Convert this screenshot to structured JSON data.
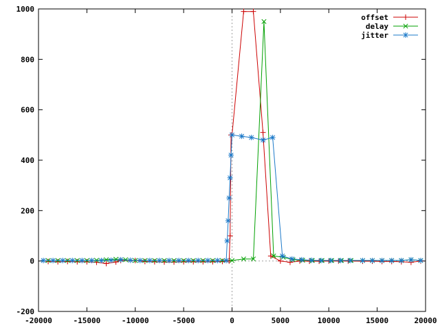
{
  "chart_data": {
    "type": "line",
    "title": "",
    "xlabel": "",
    "ylabel": "",
    "xlim": [
      -20000,
      20000
    ],
    "ylim": [
      -200,
      1000
    ],
    "x_ticks": [
      -20000,
      -15000,
      -10000,
      -5000,
      0,
      5000,
      10000,
      15000,
      20000
    ],
    "y_ticks": [
      -200,
      0,
      200,
      400,
      600,
      800,
      1000
    ],
    "x_tick_labels": [
      "-20000",
      "-15000",
      "-10000",
      "-5000",
      "0",
      "5000",
      "10000",
      "15000",
      "20000"
    ],
    "y_tick_labels": [
      "-200",
      "0",
      "200",
      "400",
      "600",
      "800",
      "1000"
    ],
    "zero_axes": true,
    "grid": false,
    "legend_position": "top-right",
    "series": [
      {
        "name": "offset",
        "color": "#cc0000",
        "marker": "plus",
        "points": [
          [
            -19000,
            -2
          ],
          [
            -18000,
            -3
          ],
          [
            -17000,
            -2
          ],
          [
            -16000,
            -3
          ],
          [
            -15000,
            -3
          ],
          [
            -14000,
            -5
          ],
          [
            -13000,
            -10
          ],
          [
            -12000,
            -4
          ],
          [
            -11500,
            2
          ],
          [
            -10000,
            2
          ],
          [
            -9000,
            -2
          ],
          [
            -8000,
            -3
          ],
          [
            -7000,
            -4
          ],
          [
            -6000,
            -4
          ],
          [
            -5000,
            -3
          ],
          [
            -4000,
            -3
          ],
          [
            -3000,
            -3
          ],
          [
            -2000,
            -3
          ],
          [
            -1000,
            -2
          ],
          [
            -300,
            0
          ],
          [
            -200,
            100
          ],
          [
            -100,
            500
          ],
          [
            0,
            500
          ],
          [
            1200,
            990
          ],
          [
            2200,
            990
          ],
          [
            3200,
            510
          ],
          [
            4000,
            20
          ],
          [
            5000,
            0
          ],
          [
            6000,
            -5
          ],
          [
            7000,
            0
          ],
          [
            8000,
            -1
          ],
          [
            9000,
            -1
          ],
          [
            10000,
            0
          ],
          [
            11000,
            0
          ],
          [
            12000,
            0
          ],
          [
            13500,
            -1
          ],
          [
            14500,
            -1
          ],
          [
            15500,
            -2
          ],
          [
            16500,
            -2
          ],
          [
            17500,
            -3
          ],
          [
            18500,
            -5
          ],
          [
            19500,
            0
          ]
        ]
      },
      {
        "name": "delay",
        "color": "#00a000",
        "marker": "cross",
        "points": [
          [
            -19000,
            2
          ],
          [
            -18000,
            2
          ],
          [
            -17000,
            2
          ],
          [
            -16000,
            2
          ],
          [
            -15000,
            2
          ],
          [
            -14000,
            3
          ],
          [
            -13000,
            5
          ],
          [
            -12000,
            7
          ],
          [
            -11000,
            5
          ],
          [
            -10000,
            2
          ],
          [
            -9000,
            2
          ],
          [
            -8000,
            2
          ],
          [
            -7000,
            2
          ],
          [
            -6000,
            2
          ],
          [
            -5000,
            2
          ],
          [
            -4000,
            2
          ],
          [
            -3000,
            2
          ],
          [
            -2000,
            2
          ],
          [
            -1000,
            2
          ],
          [
            0,
            2
          ],
          [
            1200,
            8
          ],
          [
            2200,
            8
          ],
          [
            3300,
            950
          ],
          [
            4300,
            20
          ],
          [
            5300,
            15
          ],
          [
            6300,
            5
          ],
          [
            7300,
            3
          ],
          [
            8300,
            2
          ],
          [
            9300,
            2
          ],
          [
            10300,
            2
          ],
          [
            11300,
            2
          ],
          [
            12300,
            2
          ],
          [
            13500,
            2
          ],
          [
            14500,
            2
          ],
          [
            15500,
            2
          ],
          [
            16500,
            2
          ],
          [
            17500,
            2
          ],
          [
            18500,
            5
          ],
          [
            19500,
            2
          ]
        ]
      },
      {
        "name": "jitter",
        "color": "#1a78c8",
        "marker": "star",
        "points": [
          [
            -19500,
            2
          ],
          [
            -18500,
            2
          ],
          [
            -17500,
            2
          ],
          [
            -16500,
            2
          ],
          [
            -15500,
            2
          ],
          [
            -14500,
            2
          ],
          [
            -13500,
            2
          ],
          [
            -12500,
            3
          ],
          [
            -11500,
            5
          ],
          [
            -10500,
            3
          ],
          [
            -9500,
            2
          ],
          [
            -8500,
            2
          ],
          [
            -7500,
            2
          ],
          [
            -6500,
            2
          ],
          [
            -5500,
            2
          ],
          [
            -4500,
            2
          ],
          [
            -3500,
            2
          ],
          [
            -2500,
            2
          ],
          [
            -1500,
            2
          ],
          [
            -600,
            2
          ],
          [
            -500,
            80
          ],
          [
            -400,
            160
          ],
          [
            -300,
            250
          ],
          [
            -200,
            330
          ],
          [
            -100,
            420
          ],
          [
            0,
            500
          ],
          [
            1000,
            495
          ],
          [
            2000,
            490
          ],
          [
            3200,
            480
          ],
          [
            4200,
            490
          ],
          [
            5200,
            20
          ],
          [
            6200,
            8
          ],
          [
            7200,
            5
          ],
          [
            8200,
            3
          ],
          [
            9200,
            2
          ],
          [
            10200,
            2
          ],
          [
            11200,
            2
          ],
          [
            12200,
            2
          ],
          [
            13500,
            2
          ],
          [
            14500,
            2
          ],
          [
            15500,
            2
          ],
          [
            16500,
            2
          ],
          [
            17500,
            2
          ],
          [
            18500,
            5
          ],
          [
            19500,
            2
          ]
        ]
      }
    ]
  }
}
